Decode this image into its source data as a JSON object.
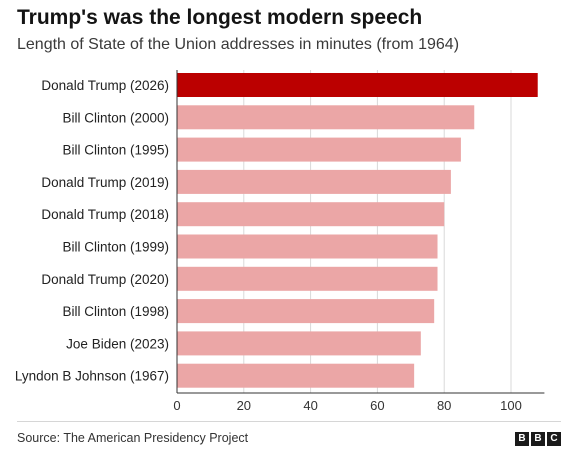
{
  "header": {
    "title": "Trump's was the longest modern speech",
    "subtitle": "Length of State of the Union addresses in minutes (from 1964)"
  },
  "footer": {
    "source": "Source: The American Presidency Project",
    "logo_letters": [
      "B",
      "B",
      "C"
    ]
  },
  "colors": {
    "highlight": "#bb0000",
    "bar": "#eba6a6",
    "grid": "#d9d9d9",
    "axis": "#333333"
  },
  "chart_data": {
    "type": "bar",
    "orientation": "horizontal",
    "title": "Trump's was the longest modern speech",
    "subtitle": "Length of State of the Union addresses in minutes (from 1964)",
    "categories": [
      "Donald Trump (2026)",
      "Bill Clinton (2000)",
      "Bill Clinton (1995)",
      "Donald Trump (2019)",
      "Donald Trump (2018)",
      "Bill Clinton (1999)",
      "Donald Trump (2020)",
      "Bill Clinton (1998)",
      "Joe Biden (2023)",
      "Lyndon B Johnson (1967)"
    ],
    "values": [
      108,
      89,
      85,
      82,
      80,
      78,
      78,
      77,
      73,
      71
    ],
    "highlighted": [
      "Donald Trump (2026)"
    ],
    "xlim": [
      0,
      110
    ],
    "xticks": [
      0,
      20,
      40,
      60,
      80,
      100
    ],
    "xlabel": "",
    "ylabel": "",
    "grid": "vertical",
    "legend": "none"
  }
}
